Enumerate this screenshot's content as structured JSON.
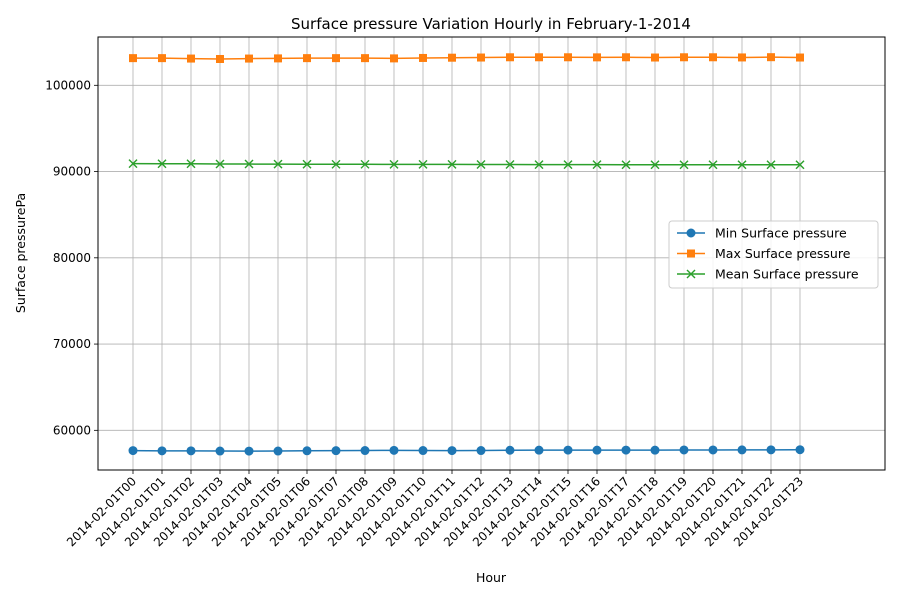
{
  "chart_data": {
    "type": "line",
    "title": "Surface pressure Variation Hourly in February-1-2014",
    "xlabel": "Hour",
    "ylabel": "Surface pressurePa",
    "categories": [
      "2014-02-01T00",
      "2014-02-01T01",
      "2014-02-01T02",
      "2014-02-01T03",
      "2014-02-01T04",
      "2014-02-01T05",
      "2014-02-01T06",
      "2014-02-01T07",
      "2014-02-01T08",
      "2014-02-01T09",
      "2014-02-01T10",
      "2014-02-01T11",
      "2014-02-01T12",
      "2014-02-01T13",
      "2014-02-01T14",
      "2014-02-01T15",
      "2014-02-01T16",
      "2014-02-01T17",
      "2014-02-01T18",
      "2014-02-01T19",
      "2014-02-01T20",
      "2014-02-01T21",
      "2014-02-01T22",
      "2014-02-01T23"
    ],
    "ylim": [
      55400,
      105600
    ],
    "yticks": [
      60000,
      70000,
      80000,
      90000,
      100000
    ],
    "grid": true,
    "legend_position": "center-right",
    "series": [
      {
        "name": "Min Surface pressure",
        "color": "#1f77b4",
        "marker": "circle",
        "values": [
          57650,
          57620,
          57620,
          57600,
          57590,
          57600,
          57630,
          57640,
          57660,
          57680,
          57660,
          57650,
          57660,
          57690,
          57700,
          57710,
          57700,
          57710,
          57700,
          57720,
          57720,
          57730,
          57740,
          57750
        ]
      },
      {
        "name": "Max Surface pressure",
        "color": "#ff7f0e",
        "marker": "square",
        "values": [
          103150,
          103150,
          103100,
          103050,
          103100,
          103120,
          103150,
          103150,
          103150,
          103120,
          103170,
          103200,
          103220,
          103250,
          103250,
          103250,
          103240,
          103250,
          103220,
          103250,
          103250,
          103230,
          103260,
          103220
        ]
      },
      {
        "name": "Mean Surface pressure",
        "color": "#2ca02c",
        "marker": "x",
        "values": [
          90920,
          90910,
          90900,
          90880,
          90870,
          90860,
          90850,
          90840,
          90840,
          90830,
          90830,
          90830,
          90820,
          90820,
          90810,
          90800,
          90800,
          90790,
          90790,
          90790,
          90790,
          90790,
          90790,
          90790
        ]
      }
    ]
  }
}
